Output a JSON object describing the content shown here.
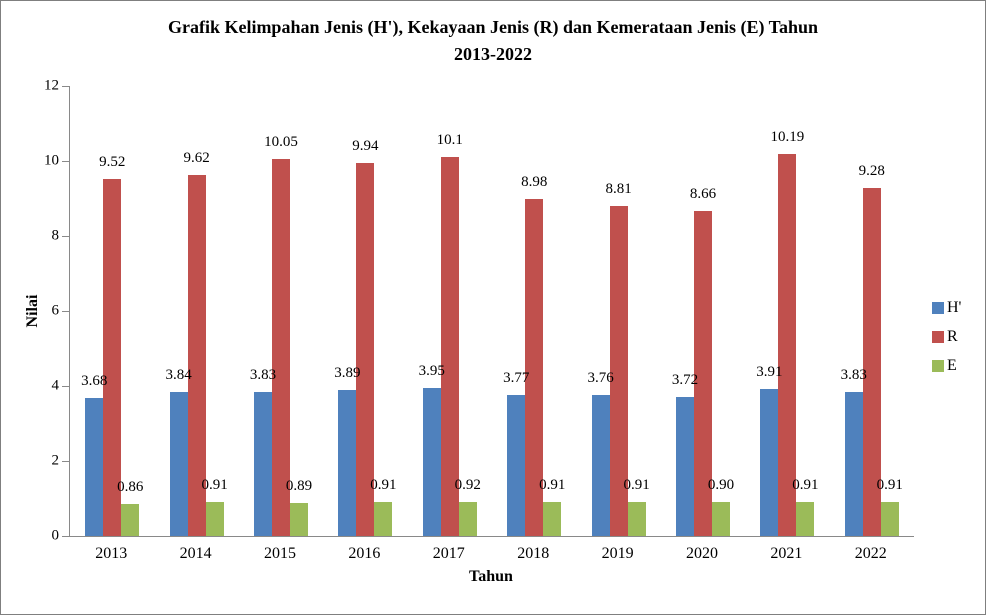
{
  "chart_data": {
    "type": "bar",
    "title": "Grafik Kelimpahan Jenis (H'), Kekayaan Jenis (R) dan Kemerataan Jenis (E) Tahun 2013-2022",
    "title_lines": {
      "line1": "Grafik Kelimpahan Jenis (H'), Kekayaan Jenis (R) dan Kemerataan Jenis (E) Tahun",
      "line2": "2013-2022"
    },
    "xlabel": "Tahun",
    "ylabel": "Nilai",
    "ylim": [
      0,
      12
    ],
    "ytick_step": 2,
    "ytick_labels": [
      "0",
      "2",
      "4",
      "6",
      "8",
      "10",
      "12"
    ],
    "grid": false,
    "legend_position": "right",
    "axis_color": "#898989",
    "categories": [
      "2013",
      "2014",
      "2015",
      "2016",
      "2017",
      "2018",
      "2019",
      "2020",
      "2021",
      "2022"
    ],
    "series": [
      {
        "name": "H'",
        "color": "#4F81BD",
        "values": [
          3.68,
          3.84,
          3.83,
          3.89,
          3.95,
          3.77,
          3.76,
          3.72,
          3.91,
          3.83
        ],
        "labels": [
          "3.68",
          "3.84",
          "3.83",
          "3.89",
          "3.95",
          "3.77",
          "3.76",
          "3.72",
          "3.91",
          "3.83"
        ]
      },
      {
        "name": "R",
        "color": "#C0504D",
        "values": [
          9.52,
          9.62,
          10.05,
          9.94,
          10.1,
          8.98,
          8.81,
          8.66,
          10.19,
          9.28
        ],
        "labels": [
          "9.52",
          "9.62",
          "10.05",
          "9.94",
          "10.1",
          "8.98",
          "8.81",
          "8.66",
          "10.19",
          "9.28"
        ]
      },
      {
        "name": "E",
        "color": "#9BBB59",
        "values": [
          0.86,
          0.91,
          0.89,
          0.91,
          0.92,
          0.91,
          0.91,
          0.9,
          0.91,
          0.91
        ],
        "labels": [
          "0.86",
          "0.91",
          "0.89",
          "0.91",
          "0.92",
          "0.91",
          "0.91",
          "0.90",
          "0.91",
          "0.91"
        ]
      }
    ]
  }
}
